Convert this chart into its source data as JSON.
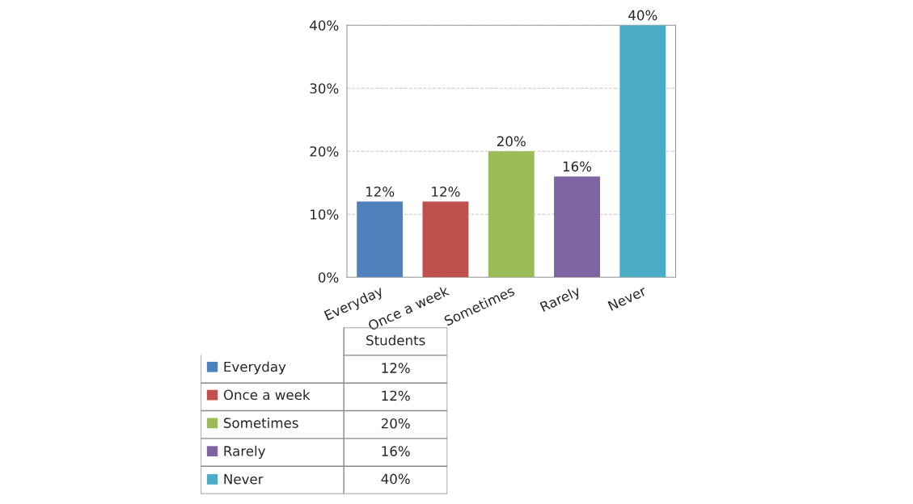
{
  "chart_data": {
    "type": "bar",
    "categories": [
      "Everyday",
      "Once a week",
      "Sometimes",
      "Rarely",
      "Never"
    ],
    "series": [
      {
        "name": "Students",
        "colors": [
          "#4f81bd",
          "#c0504d",
          "#9bbb59",
          "#8064a2",
          "#4bacc6"
        ],
        "values": [
          12,
          12,
          20,
          16,
          40
        ],
        "value_labels": [
          "12%",
          "12%",
          "20%",
          "16%",
          "40%"
        ]
      }
    ],
    "ylim": [
      0,
      40
    ],
    "yticks": [
      {
        "value": 0,
        "label": "0%"
      },
      {
        "value": 10,
        "label": "10%"
      },
      {
        "value": 20,
        "label": "20%"
      },
      {
        "value": 30,
        "label": "30%"
      },
      {
        "value": 40,
        "label": "40%"
      }
    ],
    "grid": "y",
    "legend": "bottom"
  }
}
